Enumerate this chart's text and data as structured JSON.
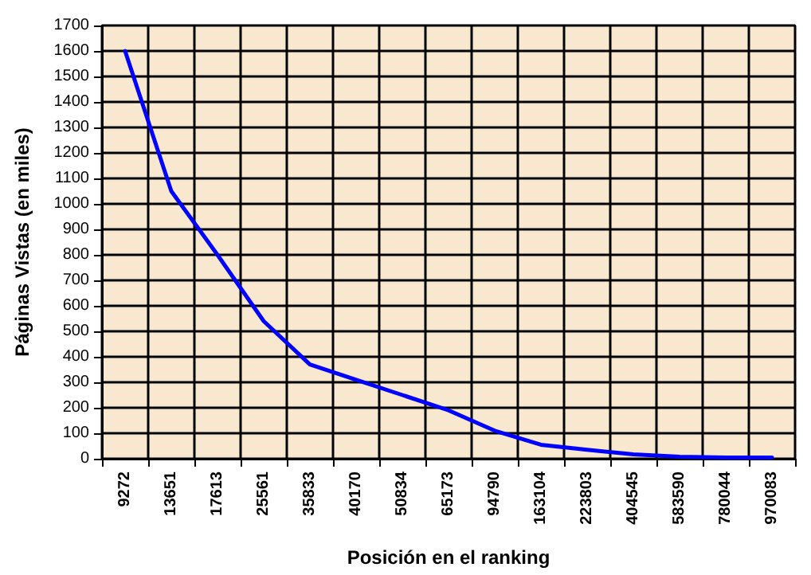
{
  "chart_data": {
    "type": "line",
    "xlabel": "Posición en el ranking",
    "ylabel": "Páginas Vistas (en miles)",
    "categories": [
      "9272",
      "13651",
      "17613",
      "25561",
      "35833",
      "40170",
      "50834",
      "65173",
      "94790",
      "163104",
      "223803",
      "404545",
      "583590",
      "780044",
      "970083"
    ],
    "series": [
      {
        "color": "#0000ff",
        "values": [
          1600,
          1050,
          800,
          540,
          370,
          310,
          250,
          190,
          110,
          55,
          35,
          17,
          8,
          5,
          5
        ]
      }
    ],
    "ylim": [
      0,
      1700
    ],
    "yticks": [
      0,
      100,
      200,
      300,
      400,
      500,
      600,
      700,
      800,
      900,
      1000,
      1100,
      1200,
      1300,
      1400,
      1500,
      1600,
      1700
    ],
    "grid": true,
    "marker": "none",
    "line_style": "solid"
  }
}
